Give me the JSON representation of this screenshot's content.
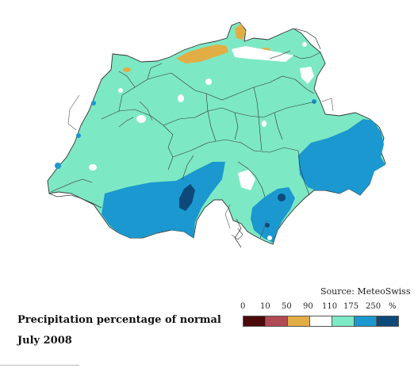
{
  "source": "Source: MeteoSwiss",
  "title": "Precipitation percentage of normal",
  "subtitle": "July 2008",
  "legend": {
    "labels": [
      "0",
      "10",
      "50",
      "90",
      "110",
      "175",
      "250",
      "%"
    ],
    "colors": [
      "#4a0a0a",
      "#b04a55",
      "#e2ad45",
      "#ffffff",
      "#7de8c4",
      "#1a98cf",
      "#0d4a7a"
    ]
  },
  "map_colors": {
    "base": "#7de8c4",
    "high": "#1a98cf",
    "very_high": "#0d4a7a",
    "low": "#e2ad45",
    "normal": "#ffffff",
    "border": "#333333",
    "river": "#555555"
  }
}
